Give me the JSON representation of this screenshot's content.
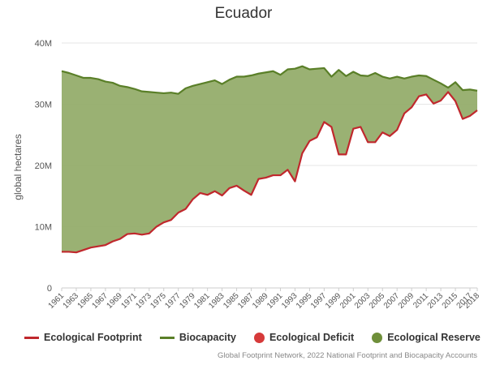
{
  "chart_data": {
    "type": "area",
    "title": "Ecuador",
    "ylabel": "global hectares",
    "ylim": [
      0,
      40000000
    ],
    "yticks": [
      {
        "value": 0,
        "label": "0"
      },
      {
        "value": 10000000,
        "label": "10M"
      },
      {
        "value": 20000000,
        "label": "20M"
      },
      {
        "value": 30000000,
        "label": "30M"
      },
      {
        "value": 40000000,
        "label": "40M"
      }
    ],
    "x": [
      1961,
      1962,
      1963,
      1964,
      1965,
      1966,
      1967,
      1968,
      1969,
      1970,
      1971,
      1972,
      1973,
      1974,
      1975,
      1976,
      1977,
      1978,
      1979,
      1980,
      1981,
      1982,
      1983,
      1984,
      1985,
      1986,
      1987,
      1988,
      1989,
      1990,
      1991,
      1992,
      1993,
      1994,
      1995,
      1996,
      1997,
      1998,
      1999,
      2000,
      2001,
      2002,
      2003,
      2004,
      2005,
      2006,
      2007,
      2008,
      2009,
      2010,
      2011,
      2012,
      2013,
      2014,
      2015,
      2016,
      2017,
      2018
    ],
    "xtick_labels": [
      "1961",
      "1963",
      "1965",
      "1967",
      "1969",
      "1971",
      "1973",
      "1975",
      "1977",
      "1979",
      "1981",
      "1983",
      "1985",
      "1987",
      "1989",
      "1991",
      "1993",
      "1995",
      "1997",
      "1999",
      "2001",
      "2003",
      "2005",
      "2007",
      "2009",
      "2011",
      "2013",
      "2015",
      "2017",
      "2018"
    ],
    "series": [
      {
        "name": "Ecological Footprint",
        "color": "#c0282d",
        "values": [
          5.9,
          5.9,
          5.8,
          6.2,
          6.6,
          6.8,
          7.0,
          7.6,
          8.0,
          8.8,
          8.9,
          8.7,
          8.9,
          10.0,
          10.7,
          11.1,
          12.3,
          12.9,
          14.5,
          15.5,
          15.2,
          15.8,
          15.1,
          16.3,
          16.7,
          15.9,
          15.2,
          17.8,
          18.0,
          18.4,
          18.4,
          19.3,
          17.4,
          22.0,
          24.0,
          24.6,
          27.1,
          26.3,
          21.8,
          21.8,
          26.0,
          26.3,
          23.8,
          23.8,
          25.4,
          24.8,
          25.8,
          28.5,
          29.5,
          31.3,
          31.6,
          30.1,
          30.6,
          32.0,
          30.5,
          27.6,
          28.1,
          29.0
        ]
      },
      {
        "name": "Biocapacity",
        "color": "#5a7f28",
        "values": [
          35.4,
          35.1,
          34.7,
          34.3,
          34.3,
          34.1,
          33.7,
          33.5,
          33.0,
          32.8,
          32.5,
          32.1,
          32.0,
          31.9,
          31.8,
          31.9,
          31.7,
          32.6,
          33.0,
          33.3,
          33.6,
          33.9,
          33.3,
          34.0,
          34.5,
          34.5,
          34.7,
          35.0,
          35.2,
          35.4,
          34.8,
          35.7,
          35.8,
          36.2,
          35.7,
          35.8,
          35.9,
          34.5,
          35.6,
          34.6,
          35.3,
          34.7,
          34.6,
          35.1,
          34.5,
          34.2,
          34.5,
          34.2,
          34.5,
          34.7,
          34.6,
          34.0,
          33.4,
          32.7,
          33.6,
          32.3,
          32.4,
          32.2
        ]
      }
    ],
    "value_unit_multiplier": 1000000,
    "legend": {
      "placement": "bottom",
      "items": [
        {
          "label": "Ecological Footprint",
          "marker": "line",
          "color": "#c0282d"
        },
        {
          "label": "Biocapacity",
          "marker": "line",
          "color": "#5a7f28"
        },
        {
          "label": "Ecological Deficit",
          "marker": "dot",
          "color": "#d63a3a"
        },
        {
          "label": "Ecological Reserve",
          "marker": "dot",
          "color": "#6f8f3a"
        }
      ]
    },
    "reserve_fill_color": "#8fa864",
    "grid": true,
    "credits": "Global Footprint Network, 2022 National Footprint and Biocapacity Accounts"
  }
}
